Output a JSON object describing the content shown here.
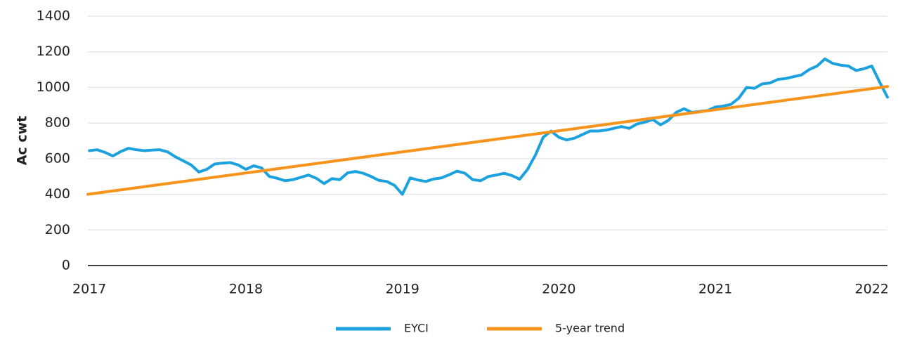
{
  "chart_data": {
    "type": "line",
    "y_label": "Ac cwt",
    "xlim": [
      2016.99,
      2022.1
    ],
    "xticks": [
      2017,
      2018,
      2019,
      2020,
      2021,
      2022
    ],
    "ylim": [
      0,
      1400
    ],
    "yticks": [
      0,
      200,
      400,
      600,
      800,
      1000,
      1200,
      1400
    ],
    "grid": true,
    "series": [
      {
        "name": "EYCI",
        "color": "#1ba1dd",
        "x": [
          2017,
          2017.05,
          2017.1,
          2017.15,
          2017.2,
          2017.25,
          2017.3,
          2017.35,
          2017.4,
          2017.45,
          2017.5,
          2017.55,
          2017.6,
          2017.65,
          2017.7,
          2017.75,
          2017.8,
          2017.85,
          2017.9,
          2017.95,
          2018,
          2018.05,
          2018.1,
          2018.15,
          2018.2,
          2018.25,
          2018.3,
          2018.35,
          2018.4,
          2018.45,
          2018.5,
          2018.55,
          2018.6,
          2018.65,
          2018.7,
          2018.75,
          2018.8,
          2018.85,
          2018.9,
          2018.95,
          2019,
          2019.05,
          2019.1,
          2019.15,
          2019.2,
          2019.25,
          2019.3,
          2019.35,
          2019.4,
          2019.45,
          2019.5,
          2019.55,
          2019.6,
          2019.65,
          2019.7,
          2019.75,
          2019.8,
          2019.85,
          2019.9,
          2019.95,
          2020,
          2020.05,
          2020.1,
          2020.15,
          2020.2,
          2020.25,
          2020.3,
          2020.35,
          2020.4,
          2020.45,
          2020.5,
          2020.55,
          2020.6,
          2020.65,
          2020.7,
          2020.75,
          2020.8,
          2020.85,
          2020.9,
          2020.95,
          2021,
          2021.05,
          2021.1,
          2021.15,
          2021.2,
          2021.25,
          2021.3,
          2021.35,
          2021.4,
          2021.45,
          2021.5,
          2021.55,
          2021.6,
          2021.65,
          2021.7,
          2021.75,
          2021.8,
          2021.85,
          2021.9,
          2021.95,
          2022,
          2022.05,
          2022.1
        ],
        "values": [
          645,
          650,
          635,
          615,
          640,
          658,
          650,
          645,
          648,
          650,
          638,
          610,
          588,
          565,
          525,
          540,
          570,
          575,
          578,
          565,
          540,
          560,
          548,
          500,
          490,
          476,
          482,
          495,
          508,
          490,
          460,
          488,
          482,
          520,
          528,
          518,
          500,
          478,
          472,
          450,
          400,
          492,
          480,
          472,
          486,
          492,
          510,
          530,
          518,
          482,
          476,
          500,
          508,
          518,
          505,
          485,
          540,
          620,
          720,
          755,
          720,
          705,
          715,
          735,
          755,
          755,
          760,
          770,
          780,
          770,
          795,
          805,
          820,
          790,
          815,
          860,
          880,
          860,
          865,
          870,
          890,
          895,
          905,
          940,
          1000,
          995,
          1020,
          1025,
          1045,
          1050,
          1060,
          1070,
          1100,
          1120,
          1160,
          1135,
          1125,
          1120,
          1095,
          1105,
          1120,
          1030,
          945
        ]
      },
      {
        "name": "5-year trend",
        "color": "#f7941d",
        "x": [
          2016.99,
          2022.1
        ],
        "values": [
          400,
          1005
        ]
      }
    ]
  }
}
